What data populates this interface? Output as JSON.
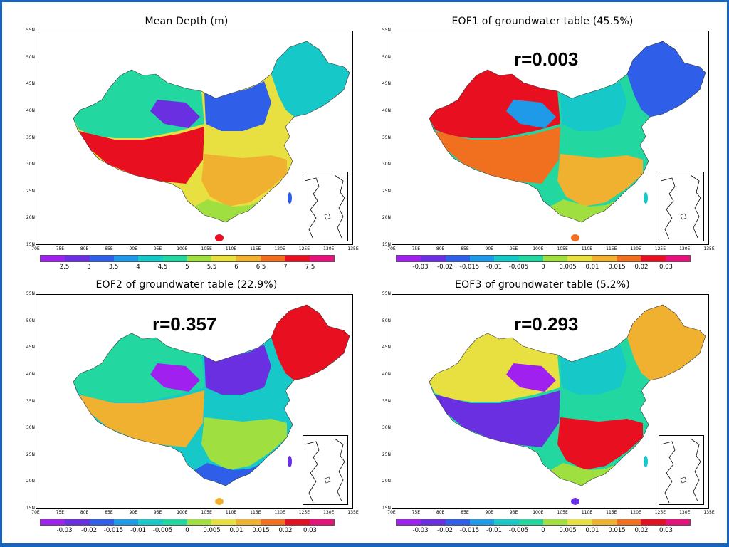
{
  "colors": {
    "frame": "#1565c0",
    "palette": [
      "#a020f0",
      "#6a2fe0",
      "#2f5fe8",
      "#1f9ae8",
      "#17c8c8",
      "#22d8a0",
      "#9fe040",
      "#e8e040",
      "#f0b030",
      "#f07020",
      "#e81020",
      "#e8107a"
    ]
  },
  "panels": [
    {
      "title": "Mean Depth (m)",
      "correlation": "",
      "colorbar_labels": [
        "2.5",
        "3",
        "3.5",
        "4",
        "4.5",
        "5",
        "5.5",
        "6",
        "6.5",
        "7",
        "7.5"
      ],
      "lat_labels": [
        "55N",
        "50N",
        "45N",
        "40N",
        "35N",
        "30N",
        "25N",
        "20N",
        "15N"
      ],
      "lon_labels": [
        "70E",
        "75E",
        "80E",
        "85E",
        "90E",
        "95E",
        "100E",
        "105E",
        "110E",
        "115E",
        "120E",
        "125E",
        "130E",
        "135E"
      ],
      "region_colors": [
        "#22d8a0",
        "#e81020",
        "#2f5fe8",
        "#17c8c8",
        "#e8e040",
        "#f0b030",
        "#9fe040",
        "#6a2fe0"
      ]
    },
    {
      "title": "EOF1 of groundwater table (45.5%)",
      "correlation": "r=0.003",
      "colorbar_labels": [
        "-0.03",
        "-0.02",
        "-0.015",
        "-0.01",
        "-0.005",
        "0",
        "0.005",
        "0.01",
        "0.015",
        "0.02",
        "0.03"
      ],
      "lat_labels": [
        "55N",
        "50N",
        "45N",
        "40N",
        "35N",
        "30N",
        "25N",
        "20N",
        "15N"
      ],
      "lon_labels": [
        "70E",
        "75E",
        "80E",
        "85E",
        "90E",
        "95E",
        "100E",
        "105E",
        "110E",
        "115E",
        "120E",
        "125E",
        "130E",
        "135E"
      ],
      "region_colors": [
        "#e81020",
        "#f07020",
        "#17c8c8",
        "#2f5fe8",
        "#22d8a0",
        "#f0b030",
        "#9fe040",
        "#1f9ae8"
      ]
    },
    {
      "title": "EOF2 of groundwater table (22.9%)",
      "correlation": "r=0.357",
      "colorbar_labels": [
        "-0.03",
        "-0.02",
        "-0.015",
        "-0.01",
        "-0.005",
        "0",
        "0.005",
        "0.01",
        "0.015",
        "0.02",
        "0.03"
      ],
      "lat_labels": [
        "55N",
        "50N",
        "45N",
        "40N",
        "35N",
        "30N",
        "25N",
        "20N",
        "15N"
      ],
      "lon_labels": [
        "70E",
        "75E",
        "80E",
        "85E",
        "90E",
        "95E",
        "100E",
        "105E",
        "110E",
        "115E",
        "120E",
        "125E",
        "130E",
        "135E"
      ],
      "region_colors": [
        "#22d8a0",
        "#f0b030",
        "#6a2fe0",
        "#e81020",
        "#17c8c8",
        "#9fe040",
        "#2f5fe8",
        "#a020f0"
      ]
    },
    {
      "title": "EOF3 of groundwater table (5.2%)",
      "correlation": "r=0.293",
      "colorbar_labels": [
        "-0.03",
        "-0.02",
        "-0.015",
        "-0.01",
        "-0.005",
        "0",
        "0.005",
        "0.01",
        "0.015",
        "0.02",
        "0.03"
      ],
      "lat_labels": [
        "55N",
        "50N",
        "45N",
        "40N",
        "35N",
        "30N",
        "25N",
        "20N",
        "15N"
      ],
      "lon_labels": [
        "70E",
        "75E",
        "80E",
        "85E",
        "90E",
        "95E",
        "100E",
        "105E",
        "110E",
        "115E",
        "120E",
        "125E",
        "130E",
        "135E"
      ],
      "region_colors": [
        "#e8e040",
        "#6a2fe0",
        "#17c8c8",
        "#f0b030",
        "#22d8a0",
        "#e81020",
        "#9fe040",
        "#a020f0"
      ]
    }
  ]
}
